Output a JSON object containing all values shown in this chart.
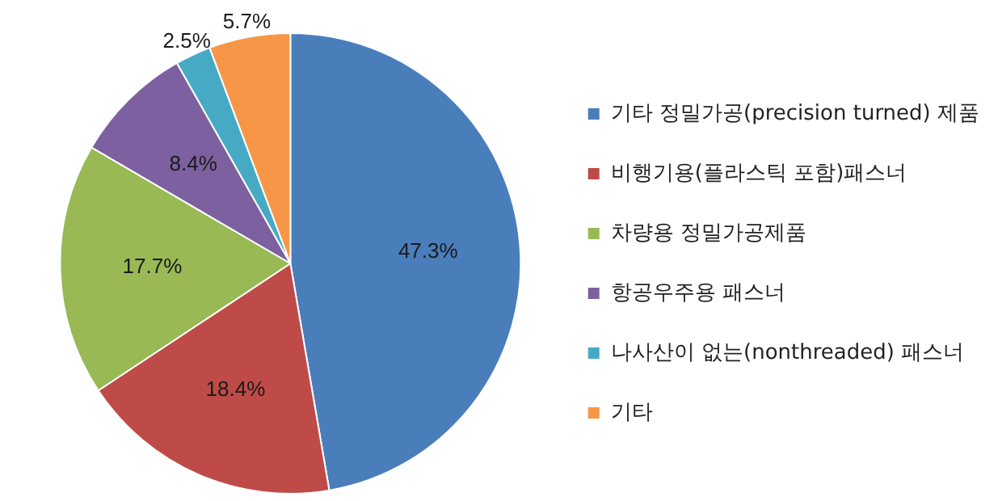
{
  "chart_data": {
    "type": "pie",
    "categories": [
      "기타 정밀가공(precision turned) 제품",
      "비행기용(플라스틱 포함)패스너",
      "차량용 정밀가공제품",
      "항공우주용 패스너",
      "나사산이 없는(nonthreaded) 패스너",
      "기타"
    ],
    "values": [
      47.3,
      18.4,
      17.7,
      8.4,
      2.5,
      5.7
    ],
    "value_labels": [
      "47.3%",
      "18.4%",
      "17.7%",
      "8.4%",
      "2.5%",
      "5.7%"
    ],
    "colors": [
      "#4a7ebb",
      "#be4b48",
      "#98b954",
      "#7d60a0",
      "#46aac5",
      "#f79646"
    ],
    "legend": "right"
  }
}
